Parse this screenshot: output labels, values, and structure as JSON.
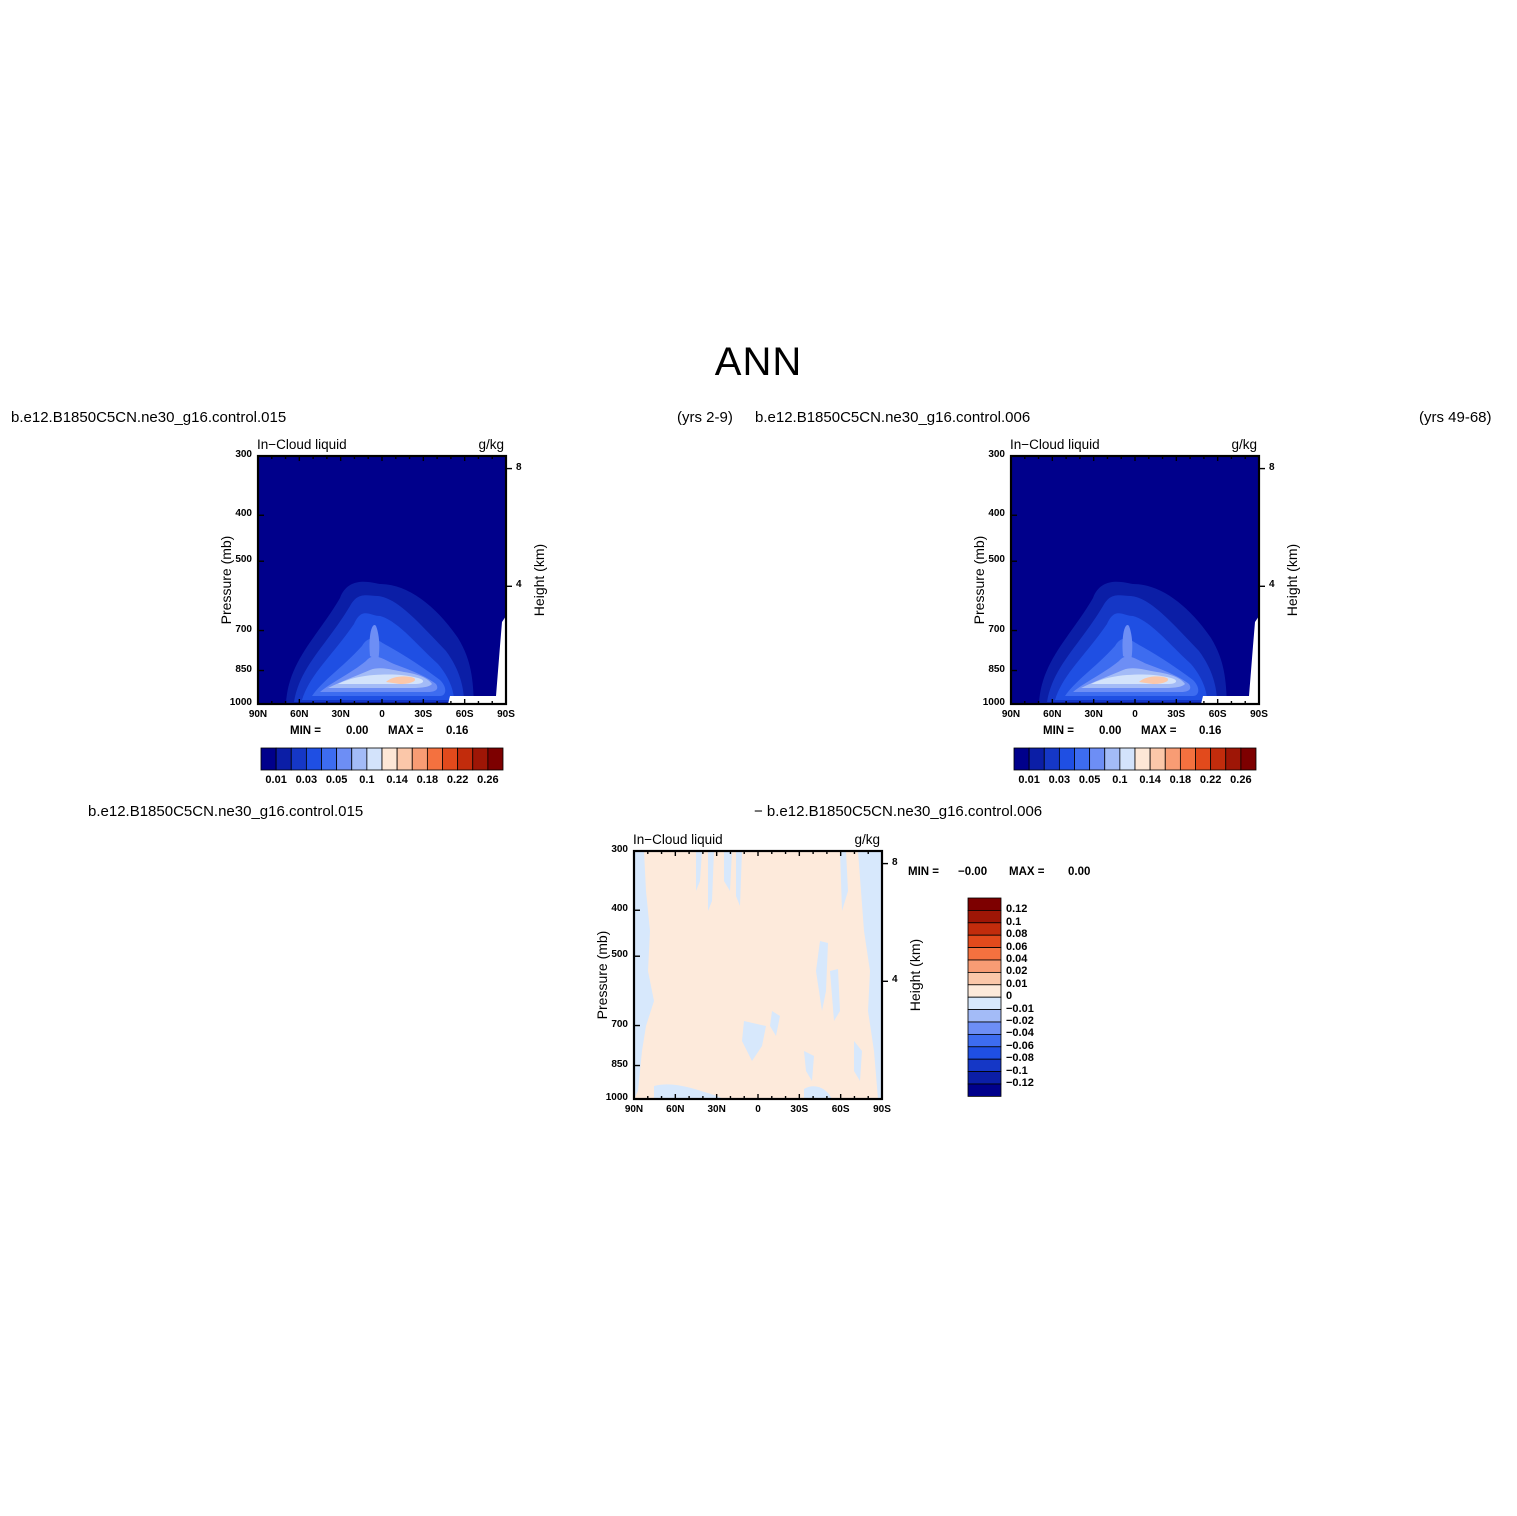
{
  "page": {
    "title": "ANN"
  },
  "top_headers": {
    "left_case": "b.e12.B1850C5CN.ne30_g16.control.015",
    "left_years": "(yrs 2-9)",
    "right_case": "b.e12.B1850C5CN.ne30_g16.control.006",
    "right_years": "(yrs 49-68)"
  },
  "diff_header": {
    "left": "b.e12.B1850C5CN.ne30_g16.control.015",
    "right": "− b.e12.B1850C5CN.ne30_g16.control.006"
  },
  "colors": {
    "abs_levels": [
      "#00008b",
      "#0b1ea6",
      "#1537c6",
      "#1f4fe3",
      "#3d6cf0",
      "#6d8ef5",
      "#a3bbf7",
      "#d3e3fb",
      "#fde7d6",
      "#fbc7a9",
      "#f89c74",
      "#f4713f",
      "#e24a1c",
      "#c22c0c",
      "#9e1606",
      "#7d0000"
    ],
    "diff_levels": [
      "#00008b",
      "#0b1ea6",
      "#1537c6",
      "#1f4fe3",
      "#3d6cf0",
      "#6d8ef5",
      "#a3bbf7",
      "#d7e8fc",
      "#fdeadb",
      "#fbc7a9",
      "#f89c74",
      "#f4713f",
      "#e24a1c",
      "#c22c0c",
      "#9e1606",
      "#7d0000"
    ]
  },
  "chart_data": [
    {
      "type": "contour",
      "panel": "top-left",
      "title_left": "In−Cloud liquid",
      "title_right": "g/kg",
      "ylabel": "Pressure (mb)",
      "ylabel_right": "Height (km)",
      "x_ticks": [
        "90N",
        "60N",
        "30N",
        "0",
        "30S",
        "60S",
        "90S"
      ],
      "y_ticks": [
        "300",
        "400",
        "500",
        "700",
        "850",
        "1000"
      ],
      "y_ticks_right": [
        "8",
        "4"
      ],
      "min_label": "MIN =",
      "min_value": "0.00",
      "max_label": "MAX =",
      "max_value": "0.16",
      "colorbar_labels": [
        "0.01",
        "0.03",
        "0.05",
        "0.1",
        "0.14",
        "0.18",
        "0.22",
        "0.26"
      ]
    },
    {
      "type": "contour",
      "panel": "top-right",
      "title_left": "In−Cloud liquid",
      "title_right": "g/kg",
      "ylabel": "Pressure (mb)",
      "ylabel_right": "Height (km)",
      "x_ticks": [
        "90N",
        "60N",
        "30N",
        "0",
        "30S",
        "60S",
        "90S"
      ],
      "y_ticks": [
        "300",
        "400",
        "500",
        "700",
        "850",
        "1000"
      ],
      "y_ticks_right": [
        "8",
        "4"
      ],
      "min_label": "MIN =",
      "min_value": "0.00",
      "max_label": "MAX =",
      "max_value": "0.16",
      "colorbar_labels": [
        "0.01",
        "0.03",
        "0.05",
        "0.1",
        "0.14",
        "0.18",
        "0.22",
        "0.26"
      ]
    },
    {
      "type": "contour",
      "panel": "bottom-difference",
      "title_left": "In−Cloud liquid",
      "title_right": "g/kg",
      "ylabel": "Pressure (mb)",
      "ylabel_right": "Height (km)",
      "x_ticks": [
        "90N",
        "60N",
        "30N",
        "0",
        "30S",
        "60S",
        "90S"
      ],
      "y_ticks": [
        "300",
        "400",
        "500",
        "700",
        "850",
        "1000"
      ],
      "y_ticks_right": [
        "8",
        "4"
      ],
      "min_label": "MIN =",
      "min_value": "−0.00",
      "max_label": "MAX =",
      "max_value": "0.00",
      "colorbar_labels": [
        "0.12",
        "0.1",
        "0.08",
        "0.06",
        "0.04",
        "0.02",
        "0.01",
        "0",
        "−0.01",
        "−0.02",
        "−0.04",
        "−0.06",
        "−0.08",
        "−0.1",
        "−0.12"
      ]
    }
  ]
}
